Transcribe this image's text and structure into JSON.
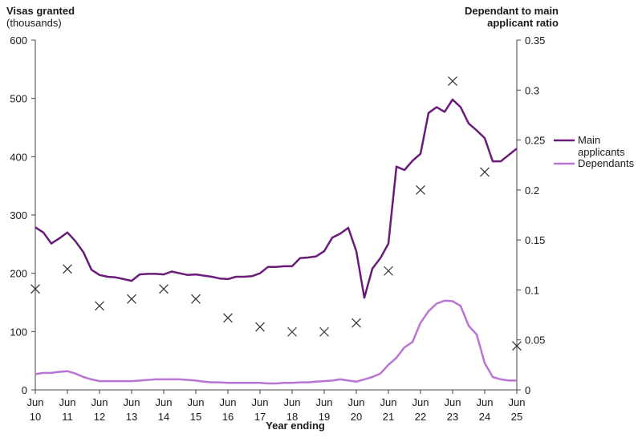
{
  "chart_data": {
    "type": "line",
    "left_axis_title": [
      "Visas granted",
      "(thousands)"
    ],
    "right_axis_title": [
      "Dependant to main",
      "applicant ratio"
    ],
    "xlabel": "Year ending",
    "x_month": "Jun",
    "x_ticks": [
      "10",
      "11",
      "12",
      "13",
      "14",
      "15",
      "16",
      "17",
      "18",
      "19",
      "20",
      "21",
      "22",
      "23",
      "24",
      "25"
    ],
    "ylim_left": [
      0,
      600
    ],
    "y_ticks_left": [
      "0",
      "100",
      "200",
      "300",
      "400",
      "500",
      "600"
    ],
    "ylim_right": [
      0,
      0.35
    ],
    "y_ticks_right": [
      "0",
      "0.05",
      "0.1",
      "0.15",
      "0.2",
      "0.25",
      "0.3",
      "0.35"
    ],
    "legend": [
      "Main applicants",
      "Dependants"
    ],
    "legend_placement": "right",
    "x_quarters": [
      2010.5,
      2010.75,
      2011.0,
      2011.25,
      2011.5,
      2011.75,
      2012.0,
      2012.25,
      2012.5,
      2012.75,
      2013.0,
      2013.25,
      2013.5,
      2013.75,
      2014.0,
      2014.25,
      2014.5,
      2014.75,
      2015.0,
      2015.25,
      2015.5,
      2015.75,
      2016.0,
      2016.25,
      2016.5,
      2016.75,
      2017.0,
      2017.25,
      2017.5,
      2017.75,
      2018.0,
      2018.25,
      2018.5,
      2018.75,
      2019.0,
      2019.25,
      2019.5,
      2019.75,
      2020.0,
      2020.25,
      2020.5,
      2020.75,
      2021.0,
      2021.25,
      2021.5,
      2021.75,
      2022.0,
      2022.25,
      2022.5,
      2022.75,
      2023.0,
      2023.25,
      2023.5,
      2023.75,
      2024.0,
      2024.25,
      2024.5,
      2024.75,
      2025.0,
      2025.25,
      2025.5
    ],
    "series": [
      {
        "name": "Main applicants",
        "color": "#6a1b7a",
        "axis": "left",
        "values": [
          279,
          270,
          251,
          260,
          270,
          255,
          236,
          206,
          197,
          194,
          193,
          190,
          187,
          198,
          199,
          199,
          198,
          203,
          200,
          197,
          198,
          196,
          194,
          191,
          190,
          194,
          194,
          195,
          200,
          211,
          211,
          212,
          212,
          226,
          227,
          229,
          238,
          261,
          268,
          278,
          238,
          158,
          208,
          226,
          251,
          383,
          377,
          393,
          405,
          475,
          485,
          477,
          498,
          485,
          457,
          445,
          432,
          392,
          392,
          403,
          414
        ]
      },
      {
        "name": "Dependants",
        "color": "#b875d4",
        "axis": "left",
        "values": [
          27,
          29,
          29,
          31,
          32,
          28,
          22,
          18,
          15,
          15,
          15,
          15,
          15,
          16,
          17,
          18,
          18,
          18,
          18,
          17,
          16,
          14,
          13,
          13,
          12,
          12,
          12,
          12,
          12,
          11,
          11,
          12,
          12,
          13,
          13,
          14,
          15,
          16,
          18,
          16,
          14,
          18,
          22,
          28,
          43,
          55,
          73,
          82,
          115,
          135,
          148,
          153,
          152,
          144,
          110,
          95,
          46,
          22,
          18,
          16,
          16
        ]
      }
    ],
    "ratio_series": {
      "name": "Dependant to main applicant ratio",
      "axis": "right",
      "marker": "x",
      "x": [
        2010.5,
        2011.5,
        2012.5,
        2013.5,
        2014.5,
        2015.5,
        2016.5,
        2017.5,
        2018.5,
        2019.5,
        2020.5,
        2021.5,
        2022.5,
        2023.5,
        2024.5,
        2025.5
      ],
      "values": [
        0.101,
        0.121,
        0.084,
        0.091,
        0.101,
        0.091,
        0.072,
        0.063,
        0.058,
        0.058,
        0.067,
        0.119,
        0.2,
        0.309,
        0.218,
        0.044
      ]
    }
  }
}
